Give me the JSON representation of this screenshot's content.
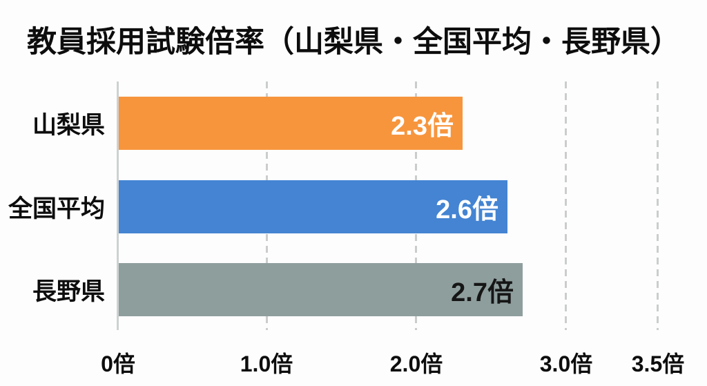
{
  "title": "教員採用試験倍率（山梨県・全国平均・長野県）",
  "chart_data": {
    "type": "bar",
    "orientation": "horizontal",
    "title": "教員採用試験倍率（山梨県・全国平均・長野県）",
    "categories": [
      "山梨県",
      "全国平均",
      "長野県"
    ],
    "values": [
      2.3,
      2.6,
      2.7
    ],
    "value_labels": [
      "2.3倍",
      "2.6倍",
      "2.7倍"
    ],
    "bar_colors": [
      "#F7953D",
      "#4484D2",
      "#8E9E9D"
    ],
    "value_label_colors": [
      "#FFFFFF",
      "#FFFFFF",
      "#161616"
    ],
    "xlabel": "",
    "ylabel": "",
    "xlim": [
      0,
      3.5
    ],
    "x_ticks": [
      {
        "value": 0,
        "label": "0倍"
      },
      {
        "value": 1.0,
        "label": "1.0倍"
      },
      {
        "value": 2.0,
        "label": "2.0倍"
      },
      {
        "value": 3.0,
        "label": "3.0倍"
      },
      {
        "value": 3.5,
        "label": "3.5倍"
      }
    ],
    "grid": "dashed-vertical",
    "legend": "none",
    "background": "#FDFDFD"
  }
}
